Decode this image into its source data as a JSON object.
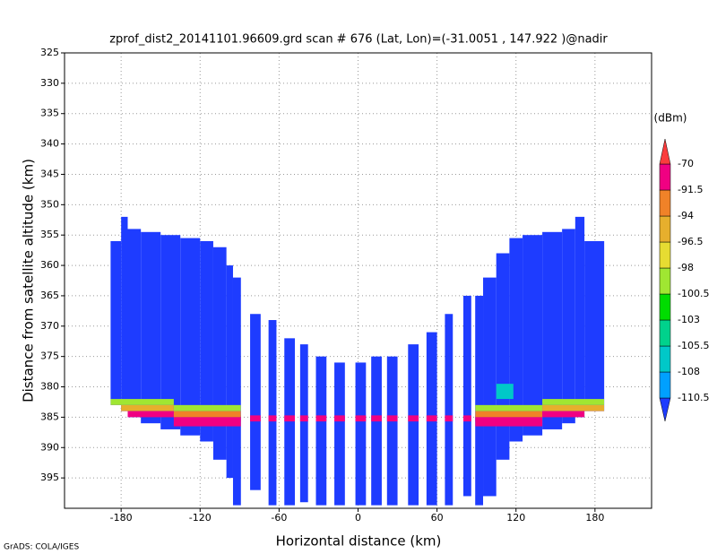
{
  "chart_data": {
    "type": "field",
    "title": "zprof_dist2_20141101.96609.grd  scan # 676  (Lat, Lon)=(-31.0051 , 147.922 )@nadir",
    "xlabel": "Horizontal distance (km)",
    "ylabel": "Distance from satellite altitude (km)",
    "footer": "GrADS: COLA/IGES",
    "xlim": [
      -223,
      223
    ],
    "ylim": [
      400,
      325
    ],
    "xticks": [
      -180,
      -120,
      -60,
      0,
      60,
      120,
      180
    ],
    "yticks": [
      325,
      330,
      335,
      340,
      345,
      350,
      355,
      360,
      365,
      370,
      375,
      380,
      385,
      390,
      395
    ],
    "grid": true,
    "colorbar": {
      "unit": "(dBm)",
      "levels": [
        -110.5,
        -108,
        -105.5,
        -103,
        -100.5,
        -98,
        -96.5,
        -94,
        -91.5,
        -70
      ],
      "colors": [
        "#1e3cff",
        "#00a0ff",
        "#00c8c8",
        "#00d28c",
        "#00dc00",
        "#a0e632",
        "#e6dc32",
        "#e6af2d",
        "#f08228",
        "#f00082",
        "#fa3c3c"
      ]
    },
    "swaths": [
      {
        "x": [
          -188,
          -180
        ],
        "y": [
          356,
          383
        ],
        "value": -112
      },
      {
        "x": [
          -180,
          -175
        ],
        "y": [
          352,
          384
        ],
        "value": -112
      },
      {
        "x": [
          -175,
          -165
        ],
        "y": [
          354,
          385
        ],
        "value": -112
      },
      {
        "x": [
          -165,
          -150
        ],
        "y": [
          354.5,
          386
        ],
        "value": -112
      },
      {
        "x": [
          -150,
          -135
        ],
        "y": [
          355,
          387
        ],
        "value": -112
      },
      {
        "x": [
          -135,
          -120
        ],
        "y": [
          355.5,
          388
        ],
        "value": -112
      },
      {
        "x": [
          -120,
          -110
        ],
        "y": [
          356,
          389
        ],
        "value": -112
      },
      {
        "x": [
          -110,
          -100
        ],
        "y": [
          357,
          392
        ],
        "value": -112
      },
      {
        "x": [
          -100,
          -95
        ],
        "y": [
          360,
          395
        ],
        "value": -112
      },
      {
        "x": [
          -95,
          -89
        ],
        "y": [
          362,
          399.5
        ],
        "value": -112
      },
      {
        "x": [
          -82,
          -74
        ],
        "y": [
          368,
          397
        ],
        "value": -112
      },
      {
        "x": [
          -68,
          -62
        ],
        "y": [
          369,
          399.5
        ],
        "value": -112
      },
      {
        "x": [
          -56,
          -48
        ],
        "y": [
          372,
          399.5
        ],
        "value": -112
      },
      {
        "x": [
          -44,
          -38
        ],
        "y": [
          373,
          399
        ],
        "value": -112
      },
      {
        "x": [
          -32,
          -24
        ],
        "y": [
          375,
          399.5
        ],
        "value": -112
      },
      {
        "x": [
          -18,
          -10
        ],
        "y": [
          376,
          399.5
        ],
        "value": -112
      },
      {
        "x": [
          -2,
          6
        ],
        "y": [
          376,
          399.5
        ],
        "value": -112
      },
      {
        "x": [
          10,
          18
        ],
        "y": [
          375,
          399.5
        ],
        "value": -112
      },
      {
        "x": [
          22,
          30
        ],
        "y": [
          375,
          399.5
        ],
        "value": -112
      },
      {
        "x": [
          38,
          46
        ],
        "y": [
          373,
          399.5
        ],
        "value": -112
      },
      {
        "x": [
          52,
          60
        ],
        "y": [
          371,
          399.5
        ],
        "value": -112
      },
      {
        "x": [
          66,
          72
        ],
        "y": [
          368,
          399.5
        ],
        "value": -112
      },
      {
        "x": [
          80,
          86
        ],
        "y": [
          365,
          398
        ],
        "value": -112
      },
      {
        "x": [
          89,
          95
        ],
        "y": [
          365,
          399.5
        ],
        "value": -112
      },
      {
        "x": [
          95,
          105
        ],
        "y": [
          362,
          398
        ],
        "value": -112
      },
      {
        "x": [
          105,
          115
        ],
        "y": [
          358,
          392
        ],
        "value": -112
      },
      {
        "x": [
          115,
          125
        ],
        "y": [
          355.5,
          389
        ],
        "value": -112
      },
      {
        "x": [
          125,
          140
        ],
        "y": [
          355,
          388
        ],
        "value": -112
      },
      {
        "x": [
          140,
          155
        ],
        "y": [
          354.5,
          387
        ],
        "value": -112
      },
      {
        "x": [
          155,
          165
        ],
        "y": [
          354,
          386
        ],
        "value": -112
      },
      {
        "x": [
          165,
          172
        ],
        "y": [
          352,
          385
        ],
        "value": -112
      },
      {
        "x": [
          172,
          187
        ],
        "y": [
          356,
          384
        ],
        "value": -112
      }
    ],
    "surface": [
      {
        "x": [
          -188,
          -140
        ],
        "y": [
          382,
          383
        ],
        "value": -99
      },
      {
        "x": [
          -188,
          -140
        ],
        "y": [
          383,
          384
        ],
        "value": -95
      },
      {
        "x": [
          -188,
          -140
        ],
        "y": [
          384,
          385
        ],
        "value": -85
      },
      {
        "x": [
          -140,
          -89
        ],
        "y": [
          383,
          384
        ],
        "value": -99
      },
      {
        "x": [
          -140,
          -89
        ],
        "y": [
          384,
          385
        ],
        "value": -93
      },
      {
        "x": [
          -140,
          -89
        ],
        "y": [
          385,
          386.5
        ],
        "value": -85
      },
      {
        "x": [
          -89,
          89
        ],
        "y": [
          384.7,
          385.7
        ],
        "value": -85
      },
      {
        "x": [
          89,
          140
        ],
        "y": [
          383,
          384
        ],
        "value": -99
      },
      {
        "x": [
          89,
          140
        ],
        "y": [
          384,
          385
        ],
        "value": -93
      },
      {
        "x": [
          89,
          140
        ],
        "y": [
          385,
          386.5
        ],
        "value": -85
      },
      {
        "x": [
          140,
          187
        ],
        "y": [
          382,
          383
        ],
        "value": -99
      },
      {
        "x": [
          140,
          187
        ],
        "y": [
          383,
          384
        ],
        "value": -95
      },
      {
        "x": [
          140,
          187
        ],
        "y": [
          384,
          385
        ],
        "value": -85
      },
      {
        "x": [
          105,
          118
        ],
        "y": [
          379.5,
          382
        ],
        "value": -107
      }
    ]
  }
}
